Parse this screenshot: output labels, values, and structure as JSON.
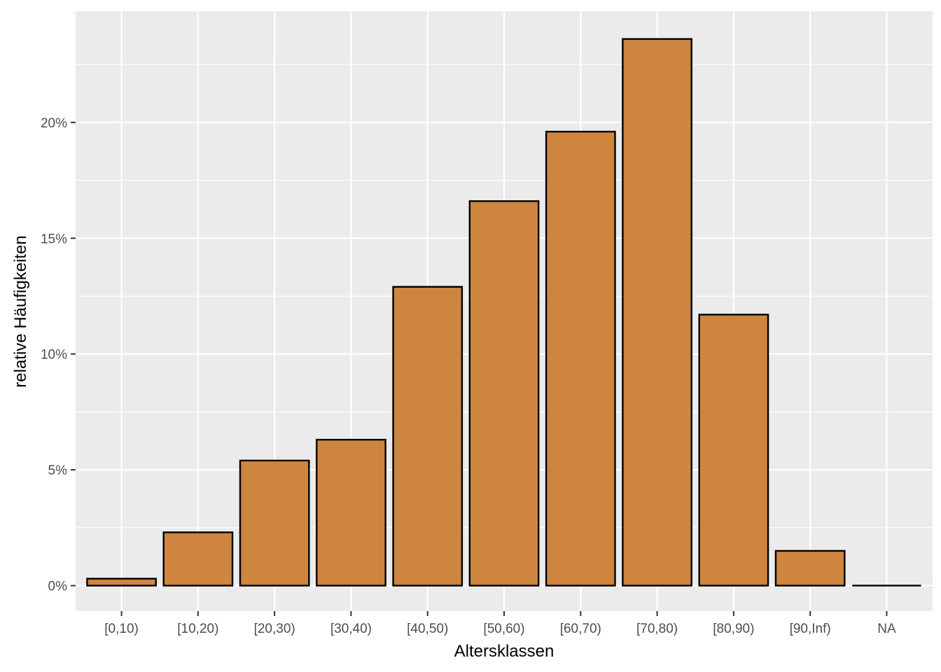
{
  "chart_data": {
    "type": "bar",
    "title": "",
    "xlabel": "Altersklassen",
    "ylabel": "relative Häufigkeiten",
    "categories": [
      "[0,10)",
      "[10,20)",
      "[20,30)",
      "[30,40)",
      "[40,50)",
      "[50,60)",
      "[60,70)",
      "[70,80)",
      "[80,90)",
      "[90,Inf)",
      "NA"
    ],
    "values": [
      0.3,
      2.3,
      5.4,
      6.3,
      12.9,
      16.6,
      19.6,
      23.6,
      11.7,
      1.5,
      0.0
    ],
    "ylim": [
      -1.1,
      24.8
    ],
    "y_ticks": [
      0,
      5,
      10,
      15,
      20
    ],
    "y_tick_labels": [
      "0%",
      "5%",
      "10%",
      "15%",
      "20%"
    ],
    "grid": true,
    "legend": "none",
    "colors": {
      "bar_fill": "#CD853F",
      "bar_stroke": "#000000",
      "panel_background": "#EBEBEB",
      "grid": "#FFFFFF"
    }
  }
}
